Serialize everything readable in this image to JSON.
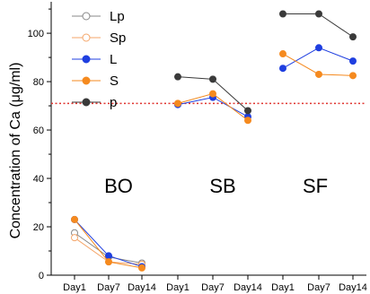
{
  "chart_data": {
    "type": "line",
    "ylabel": "Concentration of Ca (μg/ml)",
    "ylim": [
      0,
      113
    ],
    "yticks": [
      0,
      20,
      40,
      60,
      80,
      100
    ],
    "grid": false,
    "legend_position": "top-left",
    "reference_line": {
      "y": 71,
      "style": "dotted",
      "color": "#e0332e"
    },
    "groups": [
      {
        "name": "BO",
        "categories": [
          "Day1",
          "Day7",
          "Day14"
        ]
      },
      {
        "name": "SB",
        "categories": [
          "Day1",
          "Day7",
          "Day14"
        ]
      },
      {
        "name": "SF",
        "categories": [
          "Day1",
          "Day7",
          "Day14"
        ]
      }
    ],
    "series": [
      {
        "name": "Lp",
        "color": "#888888",
        "marker": "open",
        "values": [
          [
            17.5,
            7.5,
            5
          ],
          [
            null,
            null,
            null
          ],
          [
            null,
            null,
            null
          ]
        ]
      },
      {
        "name": "Sp",
        "color": "#f5a66a",
        "marker": "open",
        "values": [
          [
            15.5,
            5.5,
            4.5
          ],
          [
            null,
            null,
            null
          ],
          [
            null,
            null,
            null
          ]
        ]
      },
      {
        "name": "L",
        "color": "#1f3fe0",
        "marker": "filled",
        "values": [
          [
            23,
            8,
            3.5
          ],
          [
            70.5,
            73.5,
            65.5
          ],
          [
            85.5,
            94,
            88.5
          ]
        ]
      },
      {
        "name": "S",
        "color": "#f58a1f",
        "marker": "filled",
        "values": [
          [
            23,
            5.5,
            3
          ],
          [
            71,
            75,
            64
          ],
          [
            91.5,
            83,
            82.5
          ]
        ]
      },
      {
        "name": "p",
        "color": "#3a3a3a",
        "marker": "filled",
        "values": [
          [
            null,
            null,
            null
          ],
          [
            82,
            81,
            68
          ],
          [
            108,
            108,
            98.5
          ]
        ]
      }
    ]
  }
}
